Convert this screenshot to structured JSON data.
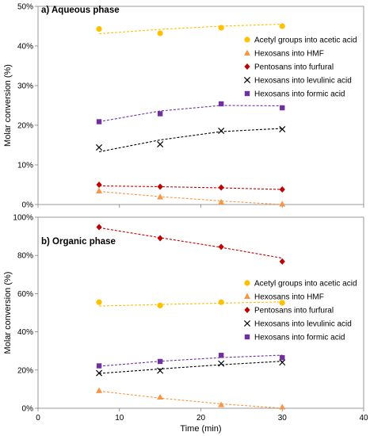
{
  "chart_data": [
    {
      "type": "scatter",
      "panel_label": "a) Aqueous phase",
      "ylabel": "Molar conversion (%)",
      "xlabel": "",
      "xlim": [
        0,
        40
      ],
      "ylim": [
        0,
        50
      ],
      "y_ticks": [
        "0%",
        "10%",
        "20%",
        "30%",
        "40%",
        "50%"
      ],
      "y_tick_values": [
        0,
        10,
        20,
        30,
        40,
        50
      ],
      "x_ticks": [],
      "legend_position": "right",
      "grid": false,
      "series": [
        {
          "name": "Acetyl groups into acetic acid",
          "marker": "circle",
          "color": "#FFC000",
          "x": [
            7.5,
            15,
            22.5,
            30
          ],
          "y": [
            44.3,
            43.2,
            44.6,
            45.0
          ],
          "trend": [
            [
              7.5,
              43.1
            ],
            [
              15,
              44.2
            ],
            [
              22.5,
              45.0
            ],
            [
              30,
              45.5
            ]
          ]
        },
        {
          "name": "Hexosans into HMF",
          "marker": "triangle",
          "color": "#F79646",
          "x": [
            7.5,
            15,
            22.5,
            30
          ],
          "y": [
            3.4,
            1.9,
            0.6,
            0.1
          ],
          "trend": [
            [
              7.5,
              3.3
            ],
            [
              15,
              2.0
            ],
            [
              22.5,
              0.9
            ],
            [
              30,
              0.0
            ]
          ]
        },
        {
          "name": "Pentosans into furfural",
          "marker": "diamond",
          "color": "#C00000",
          "x": [
            7.5,
            15,
            22.5,
            30
          ],
          "y": [
            5.0,
            4.5,
            4.3,
            3.8
          ],
          "trend": [
            [
              7.5,
              4.7
            ],
            [
              15,
              4.5
            ],
            [
              22.5,
              4.2
            ],
            [
              30,
              3.8
            ]
          ]
        },
        {
          "name": "Hexosans into levulinic acid",
          "marker": "x",
          "color": "#000000",
          "x": [
            7.5,
            15,
            22.5,
            30
          ],
          "y": [
            14.4,
            15.2,
            18.6,
            19.0
          ],
          "trend": [
            [
              7.5,
              13.3
            ],
            [
              15,
              16.3
            ],
            [
              22.5,
              18.4
            ],
            [
              30,
              19.2
            ]
          ]
        },
        {
          "name": "Hexosans into formic acid",
          "marker": "square",
          "color": "#7030A0",
          "x": [
            7.5,
            15,
            22.5,
            30
          ],
          "y": [
            20.9,
            22.9,
            25.4,
            24.4
          ],
          "trend": [
            [
              7.5,
              20.9
            ],
            [
              15,
              23.6
            ],
            [
              22.5,
              25.0
            ],
            [
              30,
              24.9
            ]
          ]
        }
      ]
    },
    {
      "type": "scatter",
      "panel_label": "b) Organic phase",
      "ylabel": "Molar conversion (%)",
      "xlabel": "Time (min)",
      "xlim": [
        0,
        40
      ],
      "ylim": [
        0,
        100
      ],
      "y_ticks": [
        "0%",
        "20%",
        "40%",
        "60%",
        "80%",
        "100%"
      ],
      "y_tick_values": [
        0,
        20,
        40,
        60,
        80,
        100
      ],
      "x_ticks": [
        "0",
        "10",
        "20",
        "30",
        "40"
      ],
      "x_tick_values": [
        0,
        10,
        20,
        30,
        40
      ],
      "legend_position": "right",
      "grid": false,
      "series": [
        {
          "name": "Acetyl groups into acetic acid",
          "marker": "circle",
          "color": "#FFC000",
          "x": [
            7.5,
            15,
            22.5,
            30
          ],
          "y": [
            55.5,
            53.8,
            55.5,
            55.2
          ],
          "trend": [
            [
              7.5,
              53.5
            ],
            [
              15,
              54.3
            ],
            [
              22.5,
              55.0
            ],
            [
              30,
              55.7
            ]
          ]
        },
        {
          "name": "Hexosans into HMF",
          "marker": "triangle",
          "color": "#F79646",
          "x": [
            7.5,
            15,
            22.5,
            30
          ],
          "y": [
            9.2,
            5.8,
            1.8,
            0.6
          ],
          "trend": [
            [
              7.5,
              9.0
            ],
            [
              15,
              5.3
            ],
            [
              22.5,
              2.3
            ],
            [
              30,
              0.0
            ]
          ]
        },
        {
          "name": "Pentosans into furfural",
          "marker": "diamond",
          "color": "#C00000",
          "x": [
            7.5,
            15,
            22.5,
            30
          ],
          "y": [
            94.8,
            89.0,
            84.5,
            76.8
          ],
          "trend": [
            [
              7.5,
              94.5
            ],
            [
              15,
              89.3
            ],
            [
              22.5,
              84.2
            ],
            [
              30,
              78.6
            ]
          ]
        },
        {
          "name": "Hexosans into levulinic acid",
          "marker": "x",
          "color": "#000000",
          "x": [
            7.5,
            15,
            22.5,
            30
          ],
          "y": [
            18.4,
            19.7,
            23.4,
            24.0
          ],
          "trend": [
            [
              7.5,
              18.2
            ],
            [
              15,
              20.6
            ],
            [
              22.5,
              22.8
            ],
            [
              30,
              24.6
            ]
          ]
        },
        {
          "name": "Hexosans into formic acid",
          "marker": "square",
          "color": "#7030A0",
          "x": [
            7.5,
            15,
            22.5,
            30
          ],
          "y": [
            22.2,
            24.5,
            27.7,
            26.5
          ],
          "trend": [
            [
              7.5,
              22.0
            ],
            [
              15,
              24.6
            ],
            [
              22.5,
              26.5
            ],
            [
              30,
              27.8
            ]
          ]
        }
      ]
    }
  ]
}
